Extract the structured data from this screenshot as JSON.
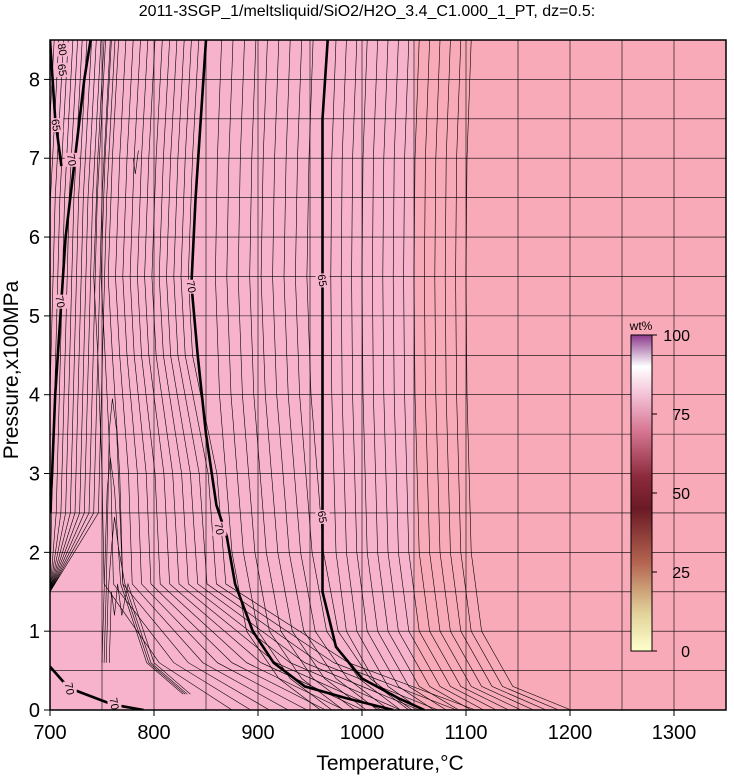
{
  "chart_data": {
    "type": "contour",
    "title": "2011-3SGP_1/meltsliquid/SiO2/H2O_3.4_C1.000_1_PT, dz=0.5:",
    "xlabel": "Temperature,°C",
    "ylabel": "Pressure,x100MPa",
    "xlim": [
      700,
      1350
    ],
    "ylim": [
      0,
      8.5
    ],
    "xticks": [
      700,
      800,
      900,
      1000,
      1100,
      1200,
      1300
    ],
    "yticks": [
      0,
      1,
      2,
      3,
      4,
      5,
      6,
      7,
      8
    ],
    "grid": true,
    "field_colors": {
      "melt_region": "#f7b3cb",
      "outer_region": "#f9aab8",
      "contour": "#000000"
    },
    "colorbar": {
      "label": "wt%",
      "min": 0,
      "max": 100,
      "ticks": [
        0,
        25,
        50,
        75,
        100
      ],
      "colors": [
        "#ffffcc",
        "#d9b38c",
        "#a0303a",
        "#4a0a10",
        "#c0506a",
        "#f0b0c8",
        "#ffffff",
        "#a05090"
      ],
      "position": "right"
    },
    "contour_labels": [
      {
        "text": "80",
        "x": 712,
        "y": 8.38
      },
      {
        "text": "65",
        "x": 712,
        "y": 8.12
      },
      {
        "text": "65",
        "x": 706,
        "y": 7.42
      },
      {
        "text": "70",
        "x": 721,
        "y": 6.98
      },
      {
        "text": "70",
        "x": 710,
        "y": 5.18
      },
      {
        "text": "70",
        "x": 836,
        "y": 5.37
      },
      {
        "text": "65",
        "x": 962,
        "y": 5.45
      },
      {
        "text": "70",
        "x": 863,
        "y": 2.3
      },
      {
        "text": "65",
        "x": 962,
        "y": 2.45
      },
      {
        "text": "70",
        "x": 719,
        "y": 0.27
      },
      {
        "text": "70",
        "x": 762,
        "y": 0.08
      }
    ],
    "bold_contours": [
      {
        "level": 70,
        "points": [
          [
            739,
            8.5
          ],
          [
            733,
            8.0
          ],
          [
            724,
            7.0
          ],
          [
            715,
            6.0
          ],
          [
            710,
            5.0
          ],
          [
            705,
            4.0
          ],
          [
            702,
            3.0
          ],
          [
            700,
            2.5
          ]
        ]
      },
      {
        "level": 70,
        "points": [
          [
            850,
            8.5
          ],
          [
            845,
            7.5
          ],
          [
            840,
            6.5
          ],
          [
            836,
            5.4
          ],
          [
            842,
            4.5
          ],
          [
            850,
            3.5
          ],
          [
            860,
            2.6
          ],
          [
            870,
            2.2
          ],
          [
            878,
            1.6
          ],
          [
            895,
            1.0
          ],
          [
            915,
            0.6
          ],
          [
            945,
            0.3
          ],
          [
            985,
            0.15
          ],
          [
            1030,
            0.0
          ]
        ]
      },
      {
        "level": 65,
        "points": [
          [
            967,
            8.5
          ],
          [
            962,
            7.5
          ],
          [
            962,
            5.5
          ],
          [
            962,
            3.0
          ],
          [
            962,
            2.45
          ],
          [
            962,
            1.5
          ],
          [
            975,
            0.8
          ],
          [
            1000,
            0.4
          ],
          [
            1035,
            0.15
          ],
          [
            1060,
            0.0
          ]
        ]
      },
      {
        "level": 70,
        "points": [
          [
            700,
            0.55
          ],
          [
            718,
            0.28
          ],
          [
            760,
            0.07
          ],
          [
            790,
            0.0
          ]
        ]
      },
      {
        "level": 65,
        "points": [
          [
            700,
            8.5
          ],
          [
            705,
            7.5
          ],
          [
            711,
            6.9
          ]
        ]
      }
    ]
  }
}
